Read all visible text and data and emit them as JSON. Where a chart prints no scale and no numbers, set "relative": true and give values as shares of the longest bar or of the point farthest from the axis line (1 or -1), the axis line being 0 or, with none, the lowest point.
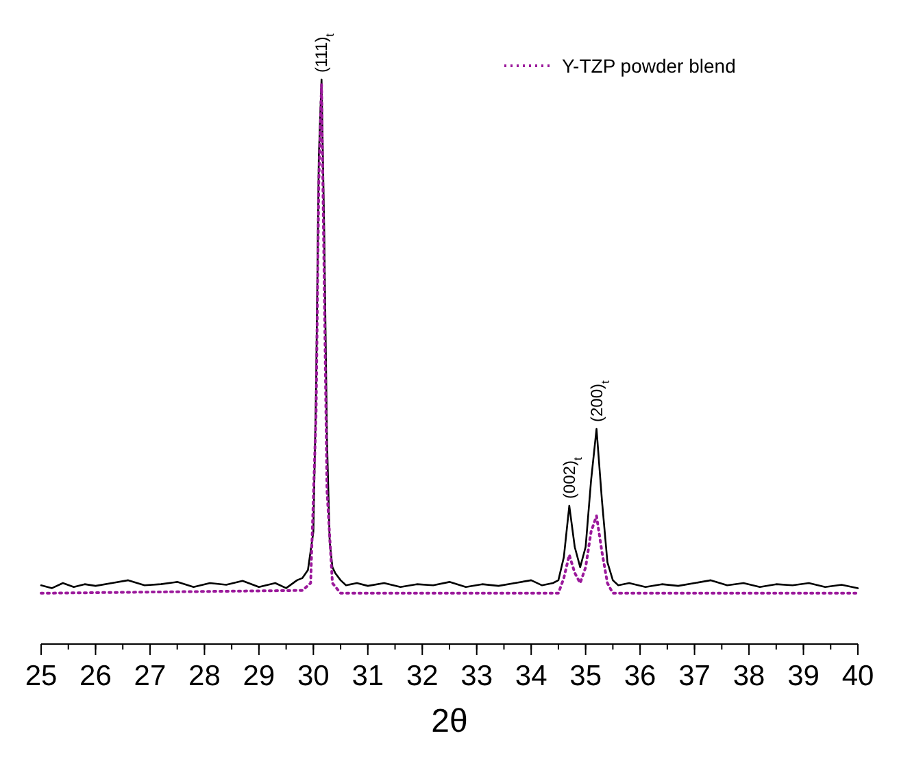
{
  "chart_data": {
    "type": "line",
    "relative": true,
    "xlabel": "2θ",
    "xlim": [
      25,
      40
    ],
    "xticks": [
      25,
      26,
      27,
      28,
      29,
      30,
      31,
      32,
      33,
      34,
      35,
      36,
      37,
      38,
      39,
      40
    ],
    "legend": "top right",
    "series": [
      {
        "color": "#000000",
        "line_style": "solid",
        "x": [
          25.0,
          25.2,
          25.4,
          25.6,
          25.8,
          26.0,
          26.3,
          26.6,
          26.9,
          27.2,
          27.5,
          27.8,
          28.1,
          28.4,
          28.7,
          29.0,
          29.3,
          29.5,
          29.7,
          29.8,
          29.9,
          30.0,
          30.05,
          30.1,
          30.15,
          30.2,
          30.25,
          30.3,
          30.35,
          30.4,
          30.5,
          30.6,
          30.8,
          31.0,
          31.3,
          31.6,
          31.9,
          32.2,
          32.5,
          32.8,
          33.1,
          33.4,
          33.7,
          34.0,
          34.2,
          34.4,
          34.5,
          34.6,
          34.7,
          34.8,
          34.9,
          35.0,
          35.1,
          35.2,
          35.3,
          35.4,
          35.5,
          35.6,
          35.8,
          36.1,
          36.4,
          36.7,
          37.0,
          37.3,
          37.6,
          37.9,
          38.2,
          38.5,
          38.8,
          39.1,
          39.4,
          39.7,
          40.0
        ],
        "values": [
          0.104,
          0.099,
          0.108,
          0.101,
          0.106,
          0.103,
          0.108,
          0.113,
          0.104,
          0.106,
          0.11,
          0.101,
          0.108,
          0.105,
          0.112,
          0.101,
          0.108,
          0.099,
          0.113,
          0.117,
          0.131,
          0.199,
          0.454,
          0.864,
          1.0,
          0.727,
          0.363,
          0.181,
          0.136,
          0.126,
          0.113,
          0.104,
          0.108,
          0.103,
          0.108,
          0.101,
          0.106,
          0.104,
          0.11,
          0.101,
          0.106,
          0.103,
          0.108,
          0.113,
          0.104,
          0.108,
          0.113,
          0.154,
          0.245,
          0.172,
          0.136,
          0.172,
          0.29,
          0.381,
          0.254,
          0.145,
          0.113,
          0.104,
          0.108,
          0.101,
          0.106,
          0.103,
          0.108,
          0.113,
          0.104,
          0.108,
          0.101,
          0.106,
          0.104,
          0.108,
          0.101,
          0.105,
          0.099
        ]
      },
      {
        "name": "Y-TZP powder blend",
        "color": "#9b199b",
        "line_style": "dotted",
        "x": [
          25.0,
          29.8,
          29.95,
          30.05,
          30.1,
          30.15,
          30.2,
          30.25,
          30.35,
          30.5,
          34.5,
          34.6,
          34.7,
          34.8,
          34.9,
          35.0,
          35.1,
          35.2,
          35.3,
          35.4,
          35.5,
          40.0
        ],
        "values": [
          0.09,
          0.095,
          0.108,
          0.409,
          0.818,
          0.991,
          0.636,
          0.272,
          0.108,
          0.09,
          0.09,
          0.117,
          0.158,
          0.126,
          0.108,
          0.136,
          0.199,
          0.227,
          0.163,
          0.108,
          0.09,
          0.09
        ]
      }
    ],
    "annotations": [
      {
        "text": "(111)$_{t}$",
        "x": 30.15,
        "y": 1.0
      },
      {
        "text": "(002)$_{t}$",
        "x": 34.7,
        "y": 0.245
      },
      {
        "text": "(200)$_{t}$",
        "x": 35.2,
        "y": 0.381
      }
    ]
  }
}
